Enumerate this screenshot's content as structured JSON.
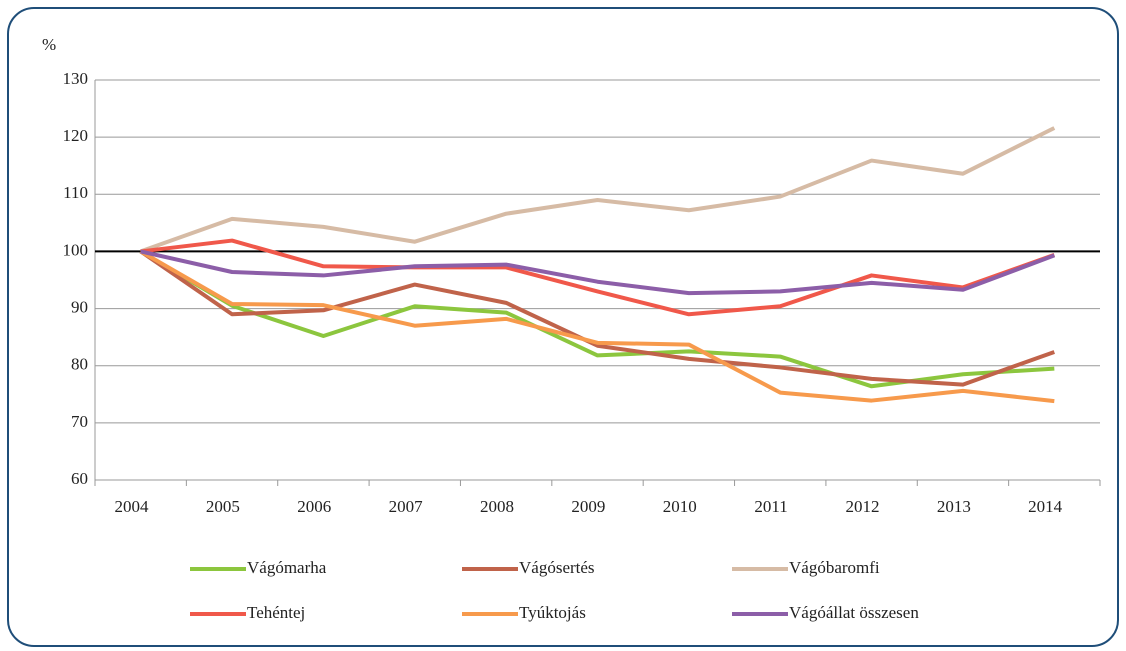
{
  "chart_data": {
    "type": "line",
    "y_label": "%",
    "categories": [
      "2004",
      "2005",
      "2006",
      "2007",
      "2008",
      "2009",
      "2010",
      "2011",
      "2012",
      "2013",
      "2014"
    ],
    "series": [
      {
        "name": "Vágómarha",
        "color": "#8cc63e",
        "values": [
          100,
          90.5,
          85.2,
          90.4,
          89.3,
          81.8,
          82.5,
          81.6,
          76.4,
          78.5,
          79.5
        ]
      },
      {
        "name": "Vágósertés",
        "color": "#c0634a",
        "values": [
          100,
          89,
          89.7,
          94.2,
          91,
          83.5,
          81.2,
          79.7,
          77.7,
          76.7,
          82.4
        ]
      },
      {
        "name": "Vágóbaromfi",
        "color": "#d6bba5",
        "values": [
          100,
          105.7,
          104.3,
          101.7,
          106.6,
          109,
          107.2,
          109.6,
          115.9,
          113.6,
          121.6
        ]
      },
      {
        "name": "Tehéntej",
        "color": "#f0584a",
        "values": [
          100,
          101.9,
          97.4,
          97.2,
          97.2,
          93,
          89,
          90.4,
          95.8,
          93.7,
          99.4
        ]
      },
      {
        "name": "Tyúktojás",
        "color": "#f79a4c",
        "values": [
          100,
          90.8,
          90.6,
          87,
          88.2,
          84,
          83.7,
          75.3,
          73.9,
          75.6,
          73.8
        ]
      },
      {
        "name": "Vágóállat összesen",
        "color": "#8c5ea8",
        "values": [
          100,
          96.4,
          95.8,
          97.4,
          97.7,
          94.7,
          92.7,
          93,
          94.5,
          93.3,
          99.3
        ]
      }
    ],
    "reference_line": 100,
    "ylim": [
      60,
      130
    ],
    "yticks": [
      60,
      70,
      80,
      90,
      100,
      110,
      120,
      130
    ],
    "grid": true
  }
}
